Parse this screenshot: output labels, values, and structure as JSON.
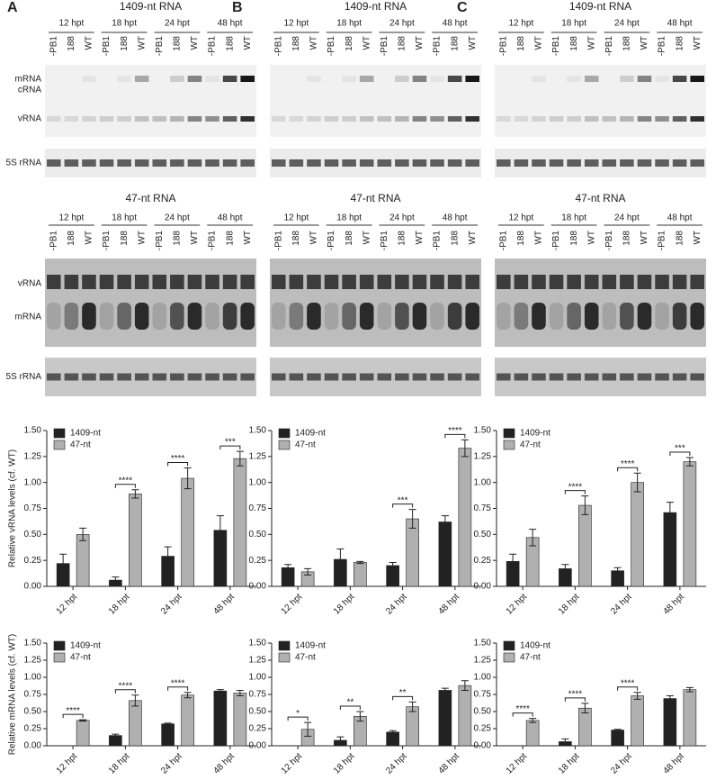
{
  "panels": [
    "A",
    "B",
    "C"
  ],
  "blots": {
    "top": {
      "title": "1409-nt RNA",
      "timepoints": [
        "12 hpt",
        "18 hpt",
        "24 hpt",
        "48 hpt"
      ],
      "lanes": [
        "-PB1",
        "188",
        "WT"
      ],
      "bands": [
        "mRNA",
        "cRNA",
        "vRNA"
      ],
      "loading": "5S rRNA"
    },
    "bottom": {
      "title": "47-nt RNA",
      "timepoints": [
        "12 hpt",
        "18 hpt",
        "24 hpt",
        "48 hpt"
      ],
      "lanes": [
        "-PB1",
        "188",
        "WT"
      ],
      "bands": [
        "vRNA",
        "mRNA"
      ],
      "loading": "5S rRNA"
    }
  },
  "chart_data": [
    {
      "type": "bar",
      "ylabel": "Relative vRNA levels (cf. WT)",
      "categories": [
        "12 hpt",
        "18 hpt",
        "24 hpt",
        "48 hpt"
      ],
      "series": [
        {
          "name": "1409-nt",
          "color": "#222222",
          "values": [
            0.22,
            0.06,
            0.29,
            0.54
          ],
          "errors": [
            0.09,
            0.03,
            0.09,
            0.14
          ]
        },
        {
          "name": "47-nt",
          "color": "#b0b0b0",
          "values": [
            0.5,
            0.89,
            1.04,
            1.23
          ],
          "errors": [
            0.06,
            0.04,
            0.1,
            0.07
          ]
        }
      ],
      "significance": [
        null,
        "****",
        "****",
        "***"
      ],
      "legend": "upper left",
      "ylim": [
        0,
        1.5
      ],
      "yticks": [
        {
          "value": 0,
          "label": "0.00"
        },
        {
          "value": 0.25,
          "label": "0.25"
        },
        {
          "value": 0.5,
          "label": "0.50"
        },
        {
          "value": 0.75,
          "label": "0.75"
        },
        {
          "value": 1,
          "label": "1.00"
        },
        {
          "value": 1.25,
          "label": "1.25"
        },
        {
          "value": 1.5,
          "label": "1.50"
        }
      ]
    },
    {
      "type": "bar",
      "categories": [
        "12 hpt",
        "18 hpt",
        "24 hpt",
        "48 hpt"
      ],
      "series": [
        {
          "name": "1409-nt",
          "color": "#222222",
          "values": [
            0.18,
            0.26,
            0.2,
            0.62
          ],
          "errors": [
            0.03,
            0.1,
            0.03,
            0.06
          ]
        },
        {
          "name": "47-nt",
          "color": "#b0b0b0",
          "values": [
            0.14,
            0.23,
            0.65,
            1.33
          ],
          "errors": [
            0.03,
            0.01,
            0.09,
            0.08
          ]
        }
      ],
      "significance": [
        null,
        null,
        "***",
        "****"
      ],
      "legend": "upper left",
      "ylim": [
        0,
        1.5
      ],
      "yticks": [
        {
          "value": 0,
          "label": "0.00"
        },
        {
          "value": 0.25,
          "label": "0.25"
        },
        {
          "value": 0.5,
          "label": "0.50"
        },
        {
          "value": 0.75,
          "label": "0.75"
        },
        {
          "value": 1,
          "label": "1.00"
        },
        {
          "value": 1.25,
          "label": "1.25"
        },
        {
          "value": 1.5,
          "label": "1.50"
        }
      ]
    },
    {
      "type": "bar",
      "categories": [
        "12 hpt",
        "18 hpt",
        "24 hpt",
        "48 hpt"
      ],
      "series": [
        {
          "name": "1409-nt",
          "color": "#222222",
          "values": [
            0.24,
            0.17,
            0.15,
            0.71
          ],
          "errors": [
            0.07,
            0.04,
            0.03,
            0.1
          ]
        },
        {
          "name": "47-nt",
          "color": "#b0b0b0",
          "values": [
            0.47,
            0.78,
            1.0,
            1.2
          ],
          "errors": [
            0.08,
            0.09,
            0.09,
            0.04
          ]
        }
      ],
      "significance": [
        null,
        "****",
        "****",
        "***"
      ],
      "legend": "upper left",
      "ylim": [
        0,
        1.5
      ],
      "yticks": [
        {
          "value": 0,
          "label": "0.00"
        },
        {
          "value": 0.25,
          "label": "0.25"
        },
        {
          "value": 0.5,
          "label": "0.50"
        },
        {
          "value": 0.75,
          "label": "0.75"
        },
        {
          "value": 1,
          "label": "1.00"
        },
        {
          "value": 1.25,
          "label": "1.25"
        },
        {
          "value": 1.5,
          "label": "1.50"
        }
      ]
    },
    {
      "type": "bar",
      "ylabel": "Relative mRNA levels (cf. WT)",
      "categories": [
        "12 hpt",
        "18 hpt",
        "24 hpt",
        "48 hpt"
      ],
      "series": [
        {
          "name": "1409-nt",
          "color": "#222222",
          "values": [
            0,
            0.15,
            0.32,
            0.8
          ],
          "errors": [
            0,
            0.02,
            0.01,
            0.02
          ]
        },
        {
          "name": "47-nt",
          "color": "#b0b0b0",
          "values": [
            0.37,
            0.66,
            0.74,
            0.77
          ],
          "errors": [
            0.01,
            0.08,
            0.04,
            0.04
          ]
        }
      ],
      "significance": [
        "****",
        "****",
        "****",
        null
      ],
      "legend": "upper left",
      "ylim": [
        0,
        1.5
      ],
      "yticks": [
        {
          "value": 0,
          "label": "0.00"
        },
        {
          "value": 0.25,
          "label": "0.25"
        },
        {
          "value": 0.5,
          "label": "0.50"
        },
        {
          "value": 0.75,
          "label": "0.75"
        },
        {
          "value": 1,
          "label": "1.00"
        },
        {
          "value": 1.25,
          "label": "1.25"
        },
        {
          "value": 1.5,
          "label": "1.50"
        }
      ]
    },
    {
      "type": "bar",
      "categories": [
        "12 hpt",
        "18 hpt",
        "24 hpt",
        "48 hpt"
      ],
      "series": [
        {
          "name": "1409-nt",
          "color": "#222222",
          "values": [
            0,
            0.08,
            0.2,
            0.81
          ],
          "errors": [
            0,
            0.05,
            0.02,
            0.03
          ]
        },
        {
          "name": "47-nt",
          "color": "#b0b0b0",
          "values": [
            0.24,
            0.43,
            0.57,
            0.88
          ],
          "errors": [
            0.1,
            0.07,
            0.07,
            0.07
          ]
        }
      ],
      "significance": [
        "*",
        "**",
        "**",
        null
      ],
      "legend": "upper left",
      "ylim": [
        0,
        1.5
      ],
      "yticks": [
        {
          "value": 0,
          "label": "0.00"
        },
        {
          "value": 0.25,
          "label": "0.25"
        },
        {
          "value": 0.5,
          "label": "0.50"
        },
        {
          "value": 0.75,
          "label": "0.75"
        },
        {
          "value": 1,
          "label": "1.00"
        },
        {
          "value": 1.25,
          "label": "1.25"
        },
        {
          "value": 1.5,
          "label": "1.50"
        }
      ]
    },
    {
      "type": "bar",
      "categories": [
        "12 hpt",
        "18 hpt",
        "24 hpt",
        "48 hpt"
      ],
      "series": [
        {
          "name": "1409-nt",
          "color": "#222222",
          "values": [
            0,
            0.06,
            0.23,
            0.69
          ],
          "errors": [
            0,
            0.04,
            0.01,
            0.04
          ]
        },
        {
          "name": "47-nt",
          "color": "#b0b0b0",
          "values": [
            0.37,
            0.55,
            0.73,
            0.82
          ],
          "errors": [
            0.03,
            0.07,
            0.05,
            0.03
          ]
        }
      ],
      "significance": [
        "****",
        "****",
        "****",
        null
      ],
      "legend": "upper left",
      "ylim": [
        0,
        1.5
      ],
      "yticks": [
        {
          "value": 0,
          "label": "0.00"
        },
        {
          "value": 0.25,
          "label": "0.25"
        },
        {
          "value": 0.5,
          "label": "0.50"
        },
        {
          "value": 0.75,
          "label": "0.75"
        },
        {
          "value": 1,
          "label": "1.00"
        },
        {
          "value": 1.25,
          "label": "1.25"
        },
        {
          "value": 1.5,
          "label": "1.50"
        }
      ]
    }
  ]
}
